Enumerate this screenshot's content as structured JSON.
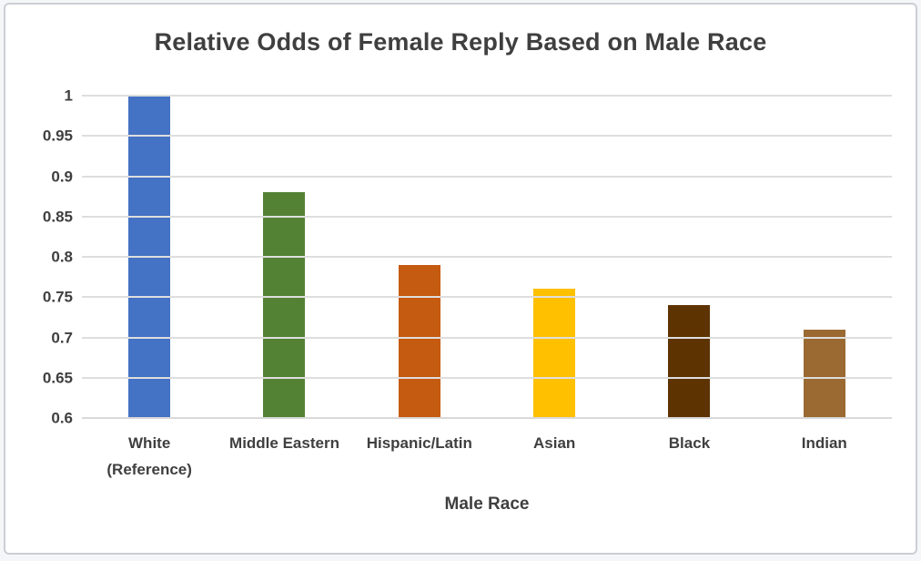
{
  "chart_data": {
    "type": "bar",
    "title": "Relative Odds of Female Reply Based on Male Race",
    "xlabel": "Male Race",
    "ylabel": "",
    "categories": [
      "White (Reference)",
      "Middle Eastern",
      "Hispanic/Latin",
      "Asian",
      "Black",
      "Indian"
    ],
    "values": [
      1.0,
      0.88,
      0.79,
      0.76,
      0.74,
      0.71
    ],
    "bar_colors": [
      "#4472c4",
      "#548235",
      "#c55a11",
      "#ffc000",
      "#5e3302",
      "#9a6a32"
    ],
    "ylim": [
      0.6,
      1.0
    ],
    "ytick_labels": [
      "1",
      "0.95",
      "0.9",
      "0.85",
      "0.8",
      "0.75",
      "0.7",
      "0.65",
      "0.6"
    ],
    "grid": true,
    "gridline_color": "#dedede",
    "text_color": "#3f3f3f",
    "legend_position": "none"
  },
  "page": {
    "background_color": "#f5f6f8",
    "card_border_color": "#cbced3"
  }
}
